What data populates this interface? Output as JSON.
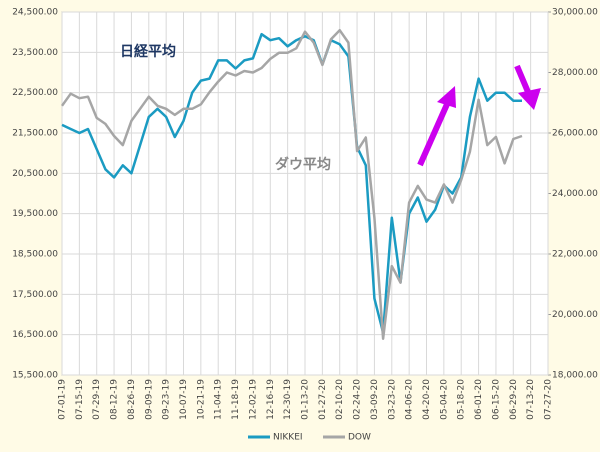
{
  "chart_data": {
    "type": "line",
    "annotations": [
      "日経平均",
      "ダウ平均"
    ],
    "categories": [
      "07-01-19",
      null,
      "07-15-19",
      null,
      "07-29-19",
      null,
      "08-12-19",
      null,
      "08-26-19",
      null,
      "09-09-19",
      null,
      "09-23-19",
      null,
      "10-07-19",
      null,
      "10-21-19",
      null,
      "11-04-19",
      null,
      "11-18-19",
      null,
      "12-02-19",
      null,
      "12-16-19",
      null,
      "12-30-19",
      null,
      "01-13-20",
      null,
      "01-27-20",
      null,
      "02-10-20",
      null,
      "02-24-20",
      null,
      "03-09-20",
      null,
      "03-23-20",
      null,
      "04-06-20",
      null,
      "04-20-20",
      null,
      "05-04-20",
      null,
      "05-18-20",
      null,
      "06-01-20",
      null,
      "06-15-20",
      null,
      "06-29-20",
      null,
      "07-13-20",
      null,
      "07-27-20"
    ],
    "series": [
      {
        "name": "NIKKEI",
        "color": "#1b9bc2",
        "values": [
          21700,
          21600,
          21500,
          21600,
          21100,
          20600,
          20400,
          20700,
          20500,
          21200,
          21900,
          22100,
          21900,
          21400,
          21800,
          22500,
          22800,
          22850,
          23300,
          23300,
          23100,
          23300,
          23350,
          23950,
          23800,
          23850,
          23650,
          23800,
          23900,
          23800,
          23200,
          23800,
          23700,
          23400,
          21150,
          20700,
          17400,
          16550,
          19400,
          17800,
          19500,
          19900,
          19300,
          19600,
          20200,
          20000,
          20400,
          21900,
          22850,
          22300,
          22500,
          22500,
          22300,
          22300,
          null,
          null,
          null
        ]
      },
      {
        "name": "DOW",
        "color": "#a6a6a6",
        "axis": "y2",
        "values": [
          26900,
          27300,
          27150,
          27200,
          26500,
          26300,
          25900,
          25600,
          26400,
          26800,
          27200,
          26900,
          26800,
          26600,
          26800,
          26800,
          26950,
          27350,
          27700,
          28000,
          27900,
          28050,
          28000,
          28150,
          28450,
          28650,
          28650,
          28800,
          29350,
          28990,
          28250,
          29100,
          29400,
          28990,
          25400,
          25850,
          23200,
          19200,
          21600,
          21050,
          23700,
          24250,
          23800,
          23700,
          24300,
          23700,
          24450,
          25380,
          27100,
          25600,
          25870,
          25000,
          25800,
          25900,
          null,
          null,
          null
        ]
      }
    ],
    "ylim": [
      15500,
      24500
    ],
    "yticks": [
      {
        "value": 15500,
        "label": "15,500.00"
      },
      {
        "value": 16500,
        "label": "16,500.00"
      },
      {
        "value": 17500,
        "label": "17,500.00"
      },
      {
        "value": 18500,
        "label": "18,500.00"
      },
      {
        "value": 19500,
        "label": "19,500.00"
      },
      {
        "value": 20500,
        "label": "20,500.00"
      },
      {
        "value": 21500,
        "label": "21,500.00"
      },
      {
        "value": 22500,
        "label": "22,500.00"
      },
      {
        "value": 23500,
        "label": "23,500.00"
      },
      {
        "value": 24500,
        "label": "24,500.00"
      }
    ],
    "y2lim": [
      18000,
      30000
    ],
    "y2ticks": [
      {
        "value": 18000,
        "label": "18,000.00"
      },
      {
        "value": 20000,
        "label": "20,000.00"
      },
      {
        "value": 22000,
        "label": "22,000.00"
      },
      {
        "value": 24000,
        "label": "24,000.00"
      },
      {
        "value": 26000,
        "label": "26,000.00"
      },
      {
        "value": 28000,
        "label": "28,000.00"
      },
      {
        "value": 30000,
        "label": "30,000.00"
      }
    ],
    "grid": true,
    "legend": "bottom"
  }
}
